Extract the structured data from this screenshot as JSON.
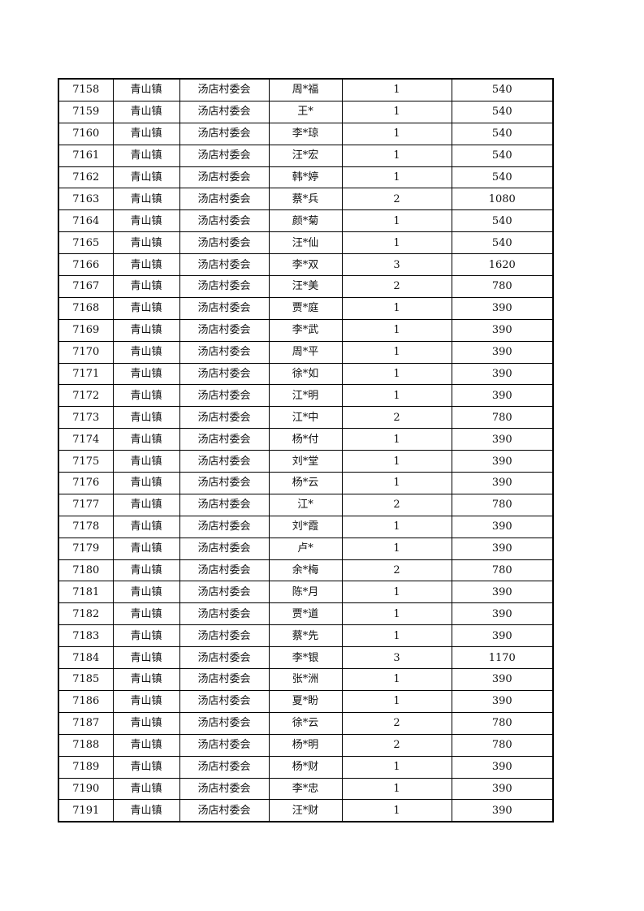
{
  "table": {
    "rows": [
      [
        "7158",
        "青山镇",
        "汤店村委会",
        "周*福",
        "1",
        "540"
      ],
      [
        "7159",
        "青山镇",
        "汤店村委会",
        "王*",
        "1",
        "540"
      ],
      [
        "7160",
        "青山镇",
        "汤店村委会",
        "李*琼",
        "1",
        "540"
      ],
      [
        "7161",
        "青山镇",
        "汤店村委会",
        "汪*宏",
        "1",
        "540"
      ],
      [
        "7162",
        "青山镇",
        "汤店村委会",
        "韩*婷",
        "1",
        "540"
      ],
      [
        "7163",
        "青山镇",
        "汤店村委会",
        "蔡*兵",
        "2",
        "1080"
      ],
      [
        "7164",
        "青山镇",
        "汤店村委会",
        "颜*菊",
        "1",
        "540"
      ],
      [
        "7165",
        "青山镇",
        "汤店村委会",
        "汪*仙",
        "1",
        "540"
      ],
      [
        "7166",
        "青山镇",
        "汤店村委会",
        "李*双",
        "3",
        "1620"
      ],
      [
        "7167",
        "青山镇",
        "汤店村委会",
        "汪*美",
        "2",
        "780"
      ],
      [
        "7168",
        "青山镇",
        "汤店村委会",
        "贾*庭",
        "1",
        "390"
      ],
      [
        "7169",
        "青山镇",
        "汤店村委会",
        "李*武",
        "1",
        "390"
      ],
      [
        "7170",
        "青山镇",
        "汤店村委会",
        "周*平",
        "1",
        "390"
      ],
      [
        "7171",
        "青山镇",
        "汤店村委会",
        "徐*如",
        "1",
        "390"
      ],
      [
        "7172",
        "青山镇",
        "汤店村委会",
        "江*明",
        "1",
        "390"
      ],
      [
        "7173",
        "青山镇",
        "汤店村委会",
        "江*中",
        "2",
        "780"
      ],
      [
        "7174",
        "青山镇",
        "汤店村委会",
        "杨*付",
        "1",
        "390"
      ],
      [
        "7175",
        "青山镇",
        "汤店村委会",
        "刘*堂",
        "1",
        "390"
      ],
      [
        "7176",
        "青山镇",
        "汤店村委会",
        "杨*云",
        "1",
        "390"
      ],
      [
        "7177",
        "青山镇",
        "汤店村委会",
        "江*",
        "2",
        "780"
      ],
      [
        "7178",
        "青山镇",
        "汤店村委会",
        "刘*霞",
        "1",
        "390"
      ],
      [
        "7179",
        "青山镇",
        "汤店村委会",
        "卢*",
        "1",
        "390"
      ],
      [
        "7180",
        "青山镇",
        "汤店村委会",
        "余*梅",
        "2",
        "780"
      ],
      [
        "7181",
        "青山镇",
        "汤店村委会",
        "陈*月",
        "1",
        "390"
      ],
      [
        "7182",
        "青山镇",
        "汤店村委会",
        "贾*道",
        "1",
        "390"
      ],
      [
        "7183",
        "青山镇",
        "汤店村委会",
        "蔡*先",
        "1",
        "390"
      ],
      [
        "7184",
        "青山镇",
        "汤店村委会",
        "李*银",
        "3",
        "1170"
      ],
      [
        "7185",
        "青山镇",
        "汤店村委会",
        "张*洲",
        "1",
        "390"
      ],
      [
        "7186",
        "青山镇",
        "汤店村委会",
        "夏*盼",
        "1",
        "390"
      ],
      [
        "7187",
        "青山镇",
        "汤店村委会",
        "徐*云",
        "2",
        "780"
      ],
      [
        "7188",
        "青山镇",
        "汤店村委会",
        "杨*明",
        "2",
        "780"
      ],
      [
        "7189",
        "青山镇",
        "汤店村委会",
        "杨*财",
        "1",
        "390"
      ],
      [
        "7190",
        "青山镇",
        "汤店村委会",
        "李*忠",
        "1",
        "390"
      ],
      [
        "7191",
        "青山镇",
        "汤店村委会",
        "汪*财",
        "1",
        "390"
      ]
    ]
  }
}
